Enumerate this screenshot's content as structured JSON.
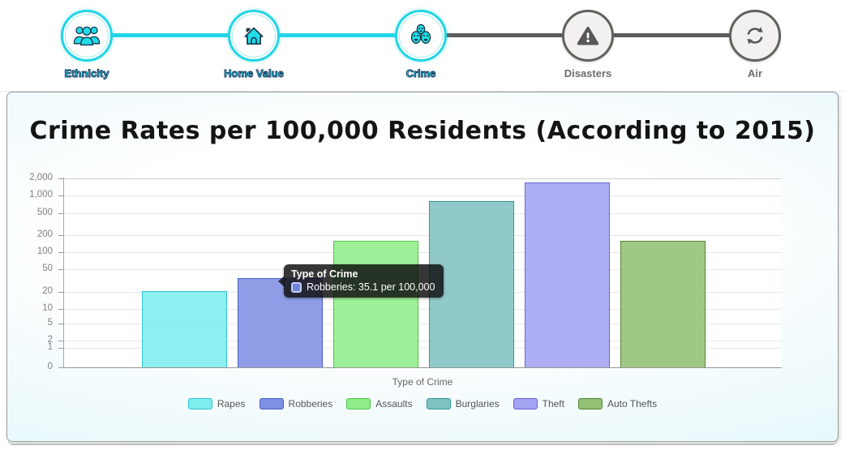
{
  "stepper": {
    "steps": [
      {
        "label": "Ethnicity",
        "icon": "people-icon",
        "state": "active"
      },
      {
        "label": "Home Value",
        "icon": "house-icon",
        "state": "active"
      },
      {
        "label": "Crime",
        "icon": "crime-masks-icon",
        "state": "active"
      },
      {
        "label": "Disasters",
        "icon": "warning-triangle-icon",
        "state": "inactive"
      },
      {
        "label": "Air",
        "icon": "recycle-icon",
        "state": "inactive"
      }
    ],
    "active_color": "#23d6e5",
    "inactive_color": "#5e5e5c"
  },
  "chart_data": {
    "type": "bar",
    "title": "Crime Rates per 100,000 Residents (According to 2015)",
    "xlabel": "Type of Crime",
    "ylabel": "",
    "y_scale": "log",
    "ylim": [
      0,
      2000
    ],
    "grid": true,
    "legend_position": "bottom",
    "unit": "per 100,000",
    "y_ticks": [
      0,
      1,
      2,
      5,
      10,
      20,
      50,
      100,
      200,
      500,
      1000,
      2000
    ],
    "y_tick_labels": [
      "0",
      "1",
      "2",
      "5",
      "10",
      "20",
      "50",
      "100",
      "200",
      "500",
      "1,000",
      "2,000"
    ],
    "categories": [
      "Rapes",
      "Robberies",
      "Assaults",
      "Burglaries",
      "Theft",
      "Auto Thefts"
    ],
    "values": [
      21,
      35.1,
      160,
      800,
      1700,
      160
    ],
    "colors": [
      {
        "fill": "#7deded",
        "border": "#35c2d4"
      },
      {
        "fill": "#7e90e2",
        "border": "#4a5ecc"
      },
      {
        "fill": "#8fee89",
        "border": "#4cc44c"
      },
      {
        "fill": "#81c2c2",
        "border": "#2e9a9a"
      },
      {
        "fill": "#a3a3f2",
        "border": "#6565d2"
      },
      {
        "fill": "#93c074",
        "border": "#55862c"
      }
    ]
  },
  "tooltip": {
    "title": "Type of Crime",
    "series": "Robberies",
    "value": "35.1",
    "unit": "per 100,000",
    "text": "Robberies: 35.1 per 100,000",
    "swatch_color": "#6f83dd"
  }
}
